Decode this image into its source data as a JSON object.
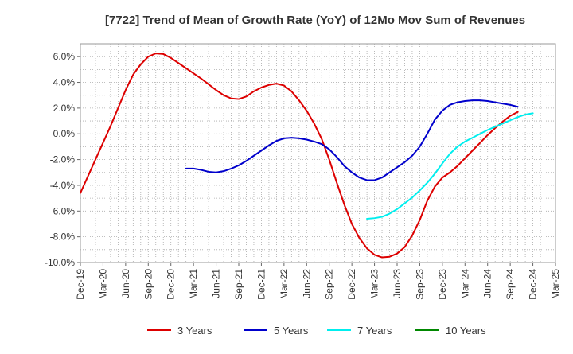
{
  "chart_data": {
    "type": "line",
    "title": "[7722]  Trend of Mean of Growth Rate (YoY) of 12Mo Mov Sum of Revenues",
    "xlabel": "",
    "ylabel": "",
    "ylim": [
      -10,
      7
    ],
    "yticks": [
      6,
      4,
      2,
      0,
      -2,
      -4,
      -6,
      -8,
      -10
    ],
    "ytick_labels": [
      "6.0%",
      "4.0%",
      "2.0%",
      "0.0%",
      "-2.0%",
      "-4.0%",
      "-6.0%",
      "-8.0%",
      "-10.0%"
    ],
    "x_tick_labels": [
      "Dec-19",
      "Mar-20",
      "Jun-20",
      "Sep-20",
      "Dec-20",
      "Mar-21",
      "Jun-21",
      "Sep-21",
      "Dec-21",
      "Mar-22",
      "Jun-22",
      "Sep-22",
      "Dec-22",
      "Mar-23",
      "Jun-23",
      "Sep-23",
      "Dec-23",
      "Mar-24",
      "Jun-24",
      "Sep-24",
      "Dec-24",
      "Mar-25"
    ],
    "x_months_total": 63,
    "grid": true,
    "legend_position": "bottom",
    "series": [
      {
        "name": "3 Years",
        "color": "#dd0000",
        "start_index": 0,
        "values": [
          -4.6,
          -3.3,
          -2.0,
          -0.7,
          0.6,
          2.0,
          3.4,
          4.6,
          5.4,
          6.0,
          6.25,
          6.2,
          5.9,
          5.5,
          5.1,
          4.7,
          4.3,
          3.85,
          3.4,
          3.0,
          2.75,
          2.7,
          2.9,
          3.3,
          3.6,
          3.8,
          3.9,
          3.75,
          3.3,
          2.6,
          1.8,
          0.8,
          -0.4,
          -2.0,
          -3.8,
          -5.5,
          -7.0,
          -8.1,
          -8.9,
          -9.4,
          -9.6,
          -9.55,
          -9.3,
          -8.8,
          -7.9,
          -6.7,
          -5.2,
          -4.1,
          -3.4,
          -3.0,
          -2.5,
          -1.9,
          -1.3,
          -0.7,
          -0.1,
          0.45,
          0.95,
          1.4,
          1.7
        ]
      },
      {
        "name": "5 Years",
        "color": "#0000cc",
        "start_index": 14,
        "values": [
          -2.7,
          -2.7,
          -2.8,
          -2.95,
          -3.0,
          -2.9,
          -2.7,
          -2.45,
          -2.1,
          -1.7,
          -1.3,
          -0.9,
          -0.55,
          -0.35,
          -0.3,
          -0.35,
          -0.45,
          -0.6,
          -0.8,
          -1.2,
          -1.8,
          -2.5,
          -3.0,
          -3.4,
          -3.6,
          -3.6,
          -3.4,
          -3.0,
          -2.6,
          -2.2,
          -1.7,
          -1.0,
          0.0,
          1.1,
          1.8,
          2.25,
          2.45,
          2.55,
          2.6,
          2.6,
          2.55,
          2.45,
          2.35,
          2.25,
          2.1
        ]
      },
      {
        "name": "7 Years",
        "color": "#00eeee",
        "start_index": 38,
        "values": [
          -6.6,
          -6.55,
          -6.45,
          -6.2,
          -5.85,
          -5.4,
          -4.95,
          -4.4,
          -3.8,
          -3.1,
          -2.3,
          -1.55,
          -1.0,
          -0.6,
          -0.3,
          0.0,
          0.3,
          0.55,
          0.8,
          1.05,
          1.3,
          1.5,
          1.6
        ]
      },
      {
        "name": "10 Years",
        "color": "#008800",
        "start_index": 0,
        "values": []
      }
    ]
  }
}
